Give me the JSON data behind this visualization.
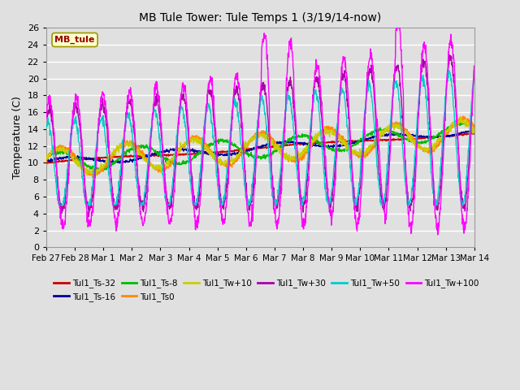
{
  "title": "MB Tule Tower: Tule Temps 1 (3/19/14-now)",
  "ylabel": "Temperature (C)",
  "ylim": [
    0,
    26
  ],
  "yticks": [
    0,
    2,
    4,
    6,
    8,
    10,
    12,
    14,
    16,
    18,
    20,
    22,
    24,
    26
  ],
  "xlabel_dates": [
    "Feb 27",
    "Feb 28",
    "Mar 1",
    "Mar 2",
    "Mar 3",
    "Mar 4",
    "Mar 5",
    "Mar 6",
    "Mar 7",
    "Mar 8",
    "Mar 9",
    "Mar 10",
    "Mar 11",
    "Mar 12",
    "Mar 13",
    "Mar 14"
  ],
  "legend_label": "MB_tule",
  "series_colors": {
    "Tul1_Ts-32": "#cc0000",
    "Tul1_Ts-16": "#000099",
    "Tul1_Ts-8": "#00bb00",
    "Tul1_Ts0": "#ff8800",
    "Tul1_Tw+10": "#cccc00",
    "Tul1_Tw+30": "#aa00aa",
    "Tul1_Tw+50": "#00cccc",
    "Tul1_Tw+100": "#ff00ff"
  },
  "background_color": "#e0e0e0",
  "grid_color": "#ffffff",
  "legend_row1": [
    "Tul1_Ts-32",
    "Tul1_Ts-16",
    "Tul1_Ts-8",
    "Tul1_Ts0",
    "Tul1_Tw+10",
    "Tul1_Tw+30"
  ],
  "legend_row2": [
    "Tul1_Tw+50",
    "Tul1_Tw+100"
  ]
}
